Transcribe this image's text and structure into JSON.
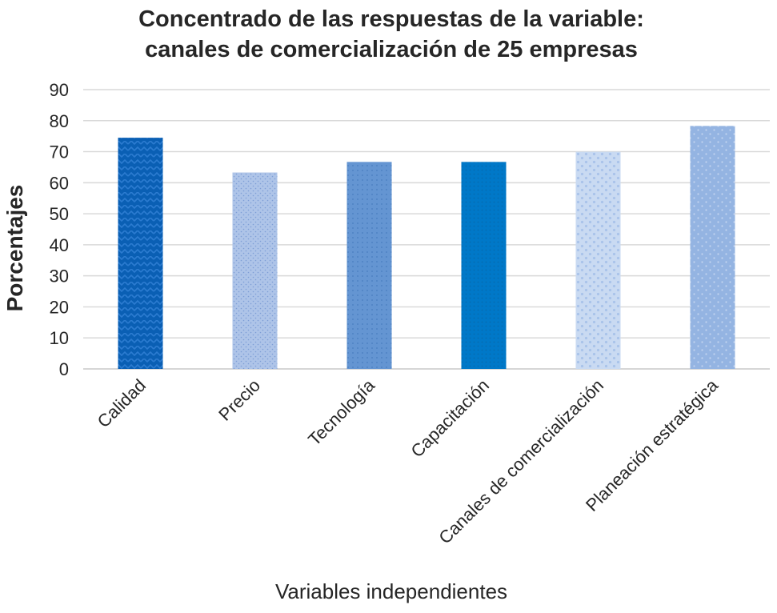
{
  "chart_data": {
    "type": "bar",
    "title": [
      "Concentrado de las respuestas de la variable:",
      "canales de comercialización de 25 empresas"
    ],
    "xlabel": "Variables independientes",
    "ylabel": "Porcentajes",
    "ylim": [
      0,
      90
    ],
    "yticks": [
      0,
      10,
      20,
      30,
      40,
      50,
      60,
      70,
      80,
      90
    ],
    "grid": true,
    "categories": [
      "Calidad",
      "Precio",
      "Tecnología",
      "Capacitación",
      "Canales de comercialización",
      "Planeación estratégica"
    ],
    "values": [
      74.5,
      63.3,
      66.7,
      66.7,
      70.0,
      78.3
    ],
    "bar_colors": [
      "#0a5fb4",
      "#a8c0e6",
      "#6495d2",
      "#0078c8",
      "#c4d6f0",
      "#94b4e2"
    ],
    "bar_patterns": [
      "zigzag",
      "fine-dots",
      "small-dots",
      "tiny-dots",
      "large-dots",
      "medium-dots"
    ]
  }
}
